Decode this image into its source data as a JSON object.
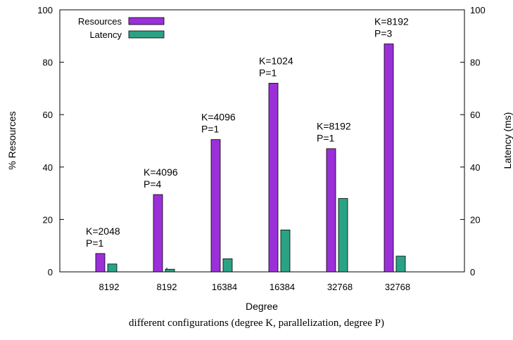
{
  "chart_data": {
    "type": "bar",
    "xlabel": "Degree",
    "ylabel_left": "% Resources",
    "ylabel_right": "Latency (ms)",
    "ylim_left": [
      0,
      100
    ],
    "ylim_right": [
      0,
      100
    ],
    "yticks_left": [
      0,
      20,
      40,
      60,
      80,
      100
    ],
    "yticks_right": [
      0,
      20,
      40,
      60,
      80,
      100
    ],
    "categories": [
      "8192",
      "8192",
      "16384",
      "16384",
      "32768",
      "32768"
    ],
    "series": [
      {
        "name": "Resources",
        "axis": "left",
        "color": "#9b30d9",
        "values": [
          7,
          29.5,
          50.5,
          72,
          47,
          87
        ]
      },
      {
        "name": "Latency",
        "axis": "right",
        "color": "#2aa384",
        "values": [
          3,
          1,
          5,
          16,
          28,
          6
        ]
      }
    ],
    "annotations": [
      {
        "line1": "K=2048",
        "line2": "P=1"
      },
      {
        "line1": "K=4096",
        "line2": "P=4"
      },
      {
        "line1": "K=4096",
        "line2": "P=1"
      },
      {
        "line1": "K=1024",
        "line2": "P=1"
      },
      {
        "line1": "K=8192",
        "line2": "P=1"
      },
      {
        "line1": "K=8192",
        "line2": "P=3"
      }
    ],
    "legend_position": "top-left",
    "grid": false
  },
  "caption": "different configurations (degree K, parallelization, degree P)"
}
